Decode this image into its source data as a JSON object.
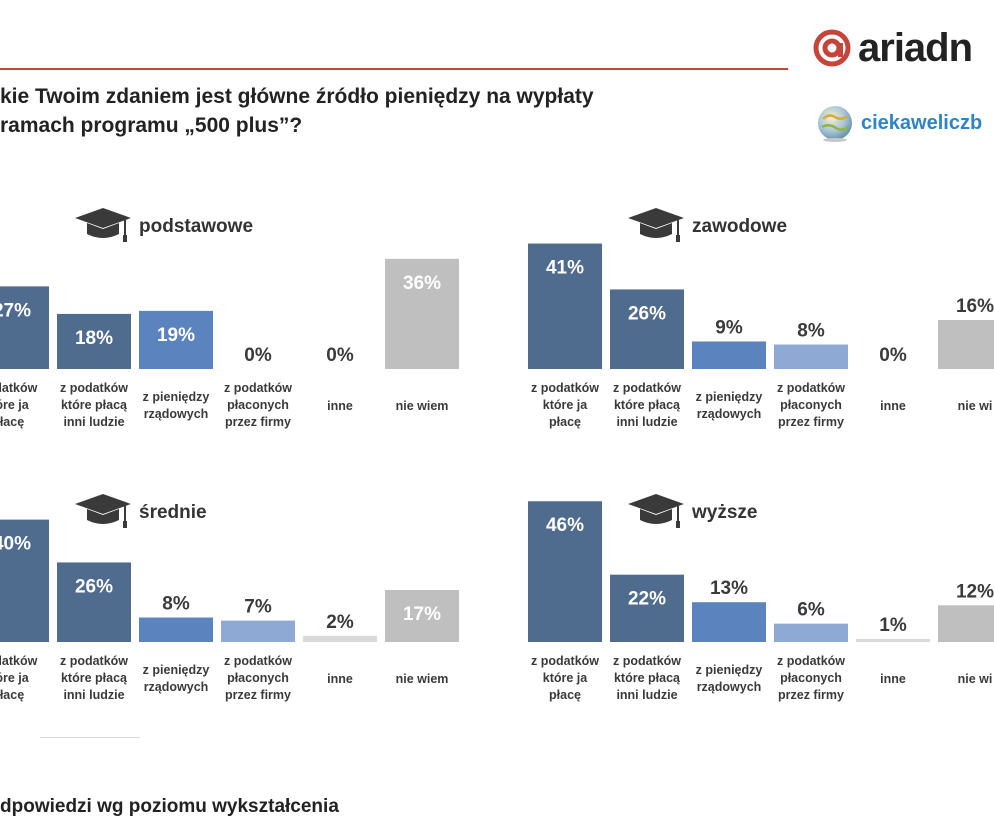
{
  "header": {
    "title_line1": "kie Twoim zdaniem jest główne źródło pieniędzy na wypłaty",
    "title_line2": "ramach programu „500 plus”?",
    "logo_text": "ariadn",
    "site_text": "ciekaweliczb",
    "colors": {
      "rule": "#c4463b",
      "logo": "#c4463b",
      "site": "#2e84c6"
    }
  },
  "footer": {
    "text": "dpowiedzi wg poziomu wykształcenia"
  },
  "chart_data": [
    {
      "type": "bar",
      "title": "podstawowe",
      "categories": [
        [
          "odatków",
          "óre ja",
          "łacę"
        ],
        [
          "z podatków",
          "które płacą",
          "inni ludzie"
        ],
        [
          "z pieniędzy",
          "rządowych"
        ],
        [
          "z podatków",
          "płaconych",
          "przez firmy"
        ],
        [
          "inne"
        ],
        [
          "nie wiem"
        ]
      ],
      "values": [
        27,
        18,
        19,
        0,
        0,
        36
      ],
      "value_labels": [
        "27%",
        "18%",
        "19%",
        "0%",
        "0%",
        "36%"
      ],
      "colors": [
        "#4f6b8e",
        "#4f6b8e",
        "#5b83bd",
        "#8ea9d3",
        "#d9d9d9",
        "#bfbfbf"
      ]
    },
    {
      "type": "bar",
      "title": "zawodowe",
      "categories": [
        [
          "z podatków",
          "które ja",
          "płacę"
        ],
        [
          "z podatków",
          "które płacą",
          "inni ludzie"
        ],
        [
          "z pieniędzy",
          "rządowych"
        ],
        [
          "z podatków",
          "płaconych",
          "przez firmy"
        ],
        [
          "inne"
        ],
        [
          "nie wi"
        ]
      ],
      "values": [
        41,
        26,
        9,
        8,
        0,
        16
      ],
      "value_labels": [
        "41%",
        "26%",
        "9%",
        "8%",
        "0%",
        "16%"
      ],
      "colors": [
        "#4f6b8e",
        "#4f6b8e",
        "#5b83bd",
        "#8ea9d3",
        "#d9d9d9",
        "#bfbfbf"
      ]
    },
    {
      "type": "bar",
      "title": "średnie",
      "categories": [
        [
          "odatków",
          "óre ja",
          "łacę"
        ],
        [
          "z podatków",
          "które płacą",
          "inni ludzie"
        ],
        [
          "z pieniędzy",
          "rządowych"
        ],
        [
          "z podatków",
          "płaconych",
          "przez firmy"
        ],
        [
          "inne"
        ],
        [
          "nie wiem"
        ]
      ],
      "values": [
        40,
        26,
        8,
        7,
        2,
        17
      ],
      "value_labels": [
        "40%",
        "26%",
        "8%",
        "7%",
        "2%",
        "17%"
      ],
      "colors": [
        "#4f6b8e",
        "#4f6b8e",
        "#5b83bd",
        "#8ea9d3",
        "#d9d9d9",
        "#bfbfbf"
      ]
    },
    {
      "type": "bar",
      "title": "wyższe",
      "categories": [
        [
          "z podatków",
          "które ja",
          "płacę"
        ],
        [
          "z podatków",
          "które płacą",
          "inni ludzie"
        ],
        [
          "z pieniędzy",
          "rządowych"
        ],
        [
          "z podatków",
          "płaconych",
          "przez firmy"
        ],
        [
          "inne"
        ],
        [
          "nie wi"
        ]
      ],
      "values": [
        46,
        22,
        13,
        6,
        1,
        12
      ],
      "value_labels": [
        "46%",
        "22%",
        "13%",
        "6%",
        "1%",
        "12%"
      ],
      "colors": [
        "#4f6b8e",
        "#4f6b8e",
        "#5b83bd",
        "#8ea9d3",
        "#d9d9d9",
        "#bfbfbf"
      ]
    }
  ]
}
